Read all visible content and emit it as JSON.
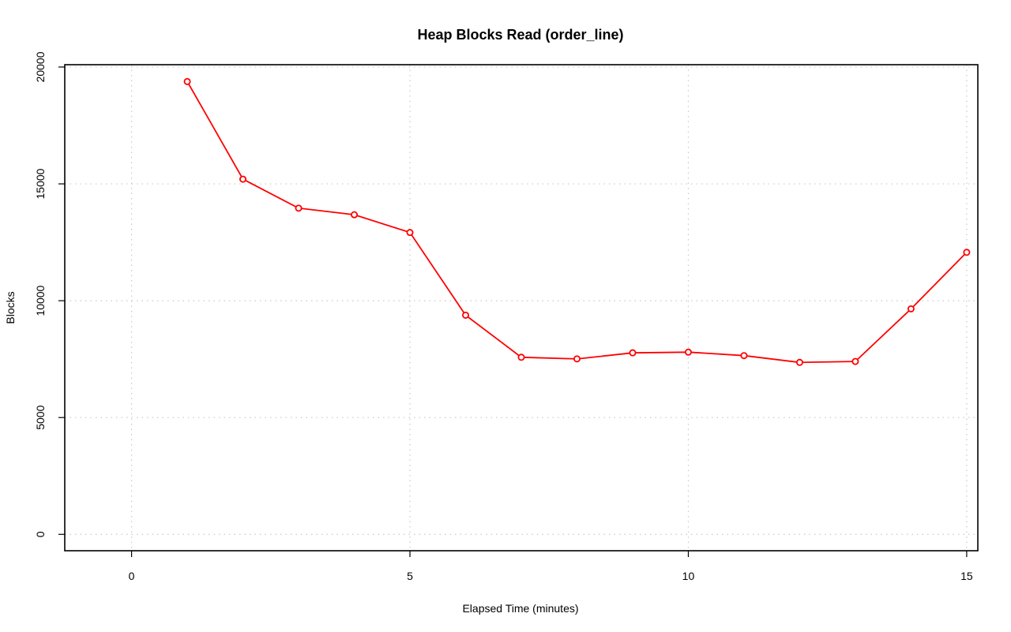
{
  "chart_data": {
    "type": "line",
    "title": "Heap Blocks Read (order_line)",
    "xlabel": "Elapsed Time (minutes)",
    "ylabel": "Blocks",
    "xlim": [
      -1.2,
      15.2
    ],
    "ylim": [
      -700,
      20100
    ],
    "xticks": [
      0,
      5,
      10,
      15
    ],
    "yticks": [
      0,
      5000,
      10000,
      15000,
      20000
    ],
    "x_tick_labels": [
      "0",
      "5",
      "10",
      "15"
    ],
    "y_tick_labels": [
      "0",
      "5000",
      "10000",
      "15000",
      "20000"
    ],
    "grid": true,
    "marker": "open-circle",
    "series": [
      {
        "color": "#ff0000",
        "x": [
          1,
          2,
          3,
          4,
          5,
          6,
          7,
          8,
          9,
          10,
          11,
          12,
          13,
          14,
          15
        ],
        "values": [
          19380,
          15200,
          13960,
          13680,
          12920,
          9380,
          7580,
          7510,
          7770,
          7800,
          7650,
          7360,
          7400,
          9650,
          12070
        ]
      }
    ]
  }
}
